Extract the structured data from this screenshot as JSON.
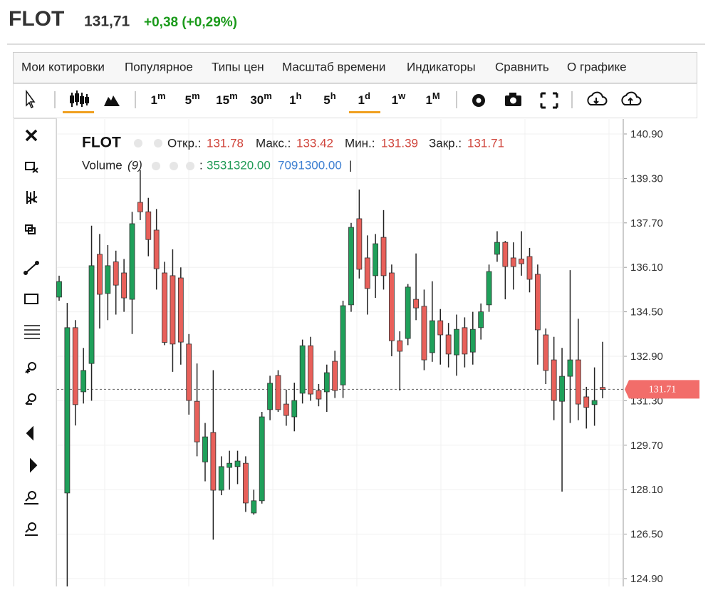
{
  "header": {
    "symbol": "FLOT",
    "price": "131,71",
    "change": "+0,38 (+0,29%)"
  },
  "menu": [
    "Мои котировки",
    "Популярное",
    "Типы цен",
    "Масштаб времени",
    "Индикаторы",
    "Сравнить",
    "О графике"
  ],
  "intervals": [
    {
      "base": "1",
      "sup": "m"
    },
    {
      "base": "5",
      "sup": "m"
    },
    {
      "base": "15",
      "sup": "m"
    },
    {
      "base": "30",
      "sup": "m"
    },
    {
      "base": "1",
      "sup": "h"
    },
    {
      "base": "5",
      "sup": "h"
    },
    {
      "base": "1",
      "sup": "d"
    },
    {
      "base": "1",
      "sup": "w"
    },
    {
      "base": "1",
      "sup": "M"
    }
  ],
  "chart_data": {
    "type": "candlestick",
    "legend": {
      "symbol": "FLOT",
      "open_label": "Откр.:",
      "open": "131.78",
      "high_label": "Макс.:",
      "high": "133.42",
      "low_label": "Мин.:",
      "low": "131.39",
      "close_label": "Закр.:",
      "close": "131.71"
    },
    "volume_legend": {
      "name": "Volume",
      "period": "(9)",
      "separator": ":",
      "value1": "3531320.00",
      "value2": "7091300.00",
      "cursor": "|"
    },
    "up_color": "#1fa05a",
    "down_color": "#e8605a",
    "grid": true,
    "ylim": [
      124.5,
      141.4
    ],
    "yticks": [
      {
        "value": 140.9,
        "label": "140.90"
      },
      {
        "value": 139.3,
        "label": "139.30"
      },
      {
        "value": 137.7,
        "label": "137.70"
      },
      {
        "value": 136.1,
        "label": "136.10"
      },
      {
        "value": 134.5,
        "label": "134.50"
      },
      {
        "value": 132.9,
        "label": "132.90"
      },
      {
        "value": 131.3,
        "label": "131.30"
      },
      {
        "value": 129.7,
        "label": "129.70"
      },
      {
        "value": 128.1,
        "label": "128.10"
      },
      {
        "value": 126.5,
        "label": "126.50"
      },
      {
        "value": 124.9,
        "label": "124.90"
      }
    ],
    "last_price": {
      "value": 131.71,
      "label": "131.71"
    },
    "open": [
      135.03,
      127.98,
      133.93,
      131.62,
      132.64,
      136.57,
      135.16,
      136.3,
      135.9,
      134.95,
      138.44,
      138.1,
      137.44,
      135.9,
      135.8,
      135.72,
      133.34,
      131.28,
      129.1,
      130.16,
      128.08,
      128.9,
      128.93,
      129.05,
      127.26,
      127.7,
      130.98,
      132.21,
      131.18,
      130.72,
      131.57,
      133.28,
      131.67,
      131.62,
      132.72,
      131.87,
      134.75,
      137.85,
      136.44,
      135.8,
      137.18,
      135.9,
      133.46,
      133.54,
      134.95,
      134.7,
      133.03,
      134.18,
      133.67,
      132.95,
      133.93,
      133.05,
      133.93,
      134.75,
      136.57,
      137.0,
      136.44,
      136.4,
      136.49,
      135.85,
      133.67,
      132.77,
      131.28,
      132.18,
      132.77,
      131.44,
      131.16,
      131.78
    ],
    "high": [
      135.8,
      134.82,
      134.2,
      133.2,
      137.6,
      137.3,
      136.9,
      136.7,
      136.4,
      138.1,
      139.6,
      138.6,
      138.2,
      136.3,
      136.75,
      136.1,
      133.7,
      132.64,
      130.5,
      132.4,
      129.3,
      129.5,
      129.5,
      129.3,
      128.1,
      130.9,
      132.2,
      132.4,
      131.7,
      131.95,
      133.5,
      133.6,
      131.9,
      132.6,
      133.1,
      134.9,
      137.7,
      138.9,
      137.25,
      137.3,
      138.16,
      136.2,
      133.8,
      135.5,
      136.6,
      135.3,
      135.6,
      134.6,
      134.1,
      134.4,
      134.3,
      134.5,
      134.8,
      136.2,
      137.4,
      137.05,
      137.0,
      137.4,
      136.8,
      136.2,
      133.9,
      133.6,
      133.2,
      136.0,
      134.25,
      131.8,
      132.5,
      133.42
    ],
    "low": [
      134.9,
      124.5,
      130.41,
      131.2,
      131.3,
      133.9,
      134.2,
      134.4,
      134.5,
      133.7,
      137.8,
      136.5,
      135.3,
      133.3,
      132.34,
      132.6,
      130.8,
      129.3,
      128.4,
      126.3,
      127.9,
      128.1,
      128.3,
      127.3,
      127.2,
      127.6,
      130.6,
      130.9,
      130.4,
      130.2,
      131.2,
      131.3,
      131.1,
      130.9,
      131.4,
      131.4,
      134.5,
      135.7,
      134.4,
      135.0,
      135.3,
      132.9,
      131.67,
      133.3,
      134.2,
      132.4,
      132.7,
      132.6,
      132.5,
      132.2,
      132.5,
      132.6,
      133.5,
      134.5,
      136.3,
      134.95,
      135.3,
      135.8,
      135.2,
      132.6,
      131.9,
      130.6,
      128.03,
      130.5,
      130.6,
      130.3,
      130.4,
      131.39
    ],
    "close": [
      135.59,
      133.93,
      131.16,
      132.39,
      136.16,
      135.13,
      136.16,
      135.46,
      135.0,
      137.67,
      138.1,
      137.1,
      136.05,
      133.4,
      133.34,
      133.41,
      131.31,
      129.82,
      130.0,
      128.08,
      128.93,
      129.05,
      129.13,
      127.62,
      127.7,
      130.72,
      131.93,
      130.98,
      130.77,
      131.31,
      133.28,
      131.54,
      131.36,
      132.31,
      131.67,
      134.72,
      137.54,
      136.03,
      135.34,
      136.95,
      135.8,
      133.46,
      133.08,
      135.39,
      134.64,
      132.77,
      134.18,
      133.67,
      132.98,
      133.87,
      132.98,
      133.87,
      134.5,
      135.95,
      137.0,
      136.13,
      136.13,
      136.23,
      135.67,
      133.85,
      132.39,
      131.31,
      132.18,
      132.77,
      131.18,
      131.06,
      131.31,
      131.71
    ]
  }
}
